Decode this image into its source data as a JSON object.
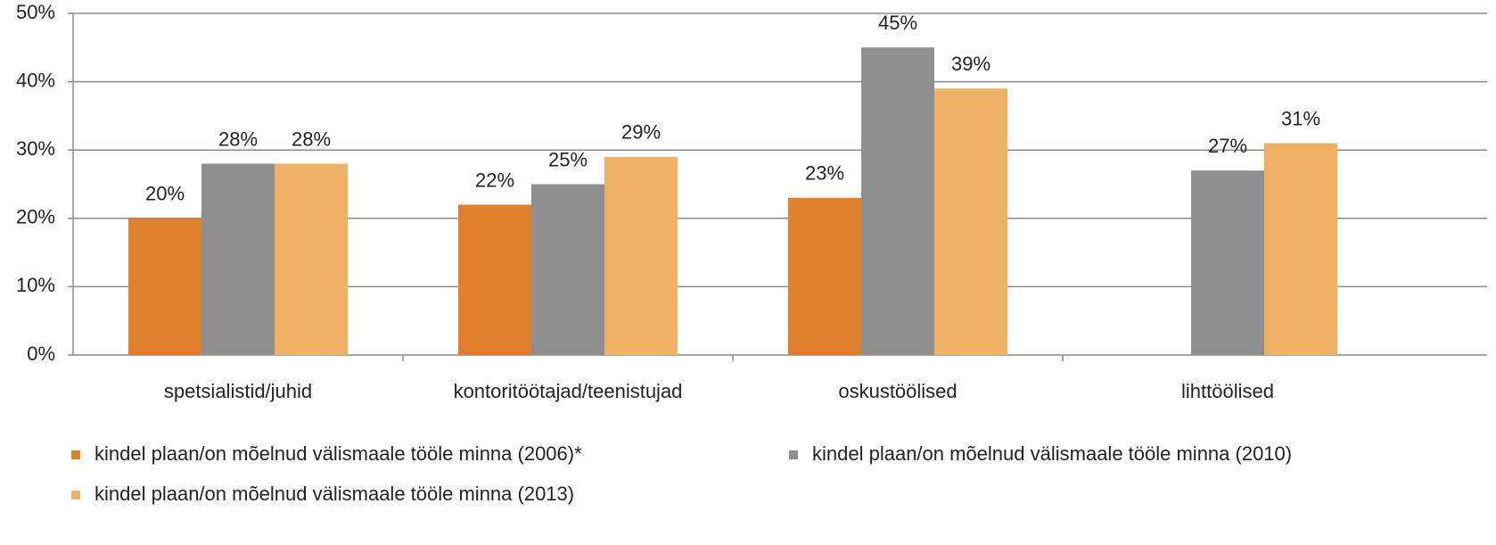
{
  "chart_data": {
    "type": "bar",
    "categories": [
      "spetsialistid/juhid",
      "kontoritöötajad/teenistujad",
      "oskustöölised",
      "lihttöölised"
    ],
    "series": [
      {
        "name": "kindel plaan/on mõelnud välismaale tööle minna (2006)*",
        "color": "#e0802c",
        "values": [
          20,
          22,
          23,
          null
        ],
        "value_labels": [
          "20%",
          "22%",
          "23%",
          null
        ]
      },
      {
        "name": "kindel plaan/on mõelnud välismaale tööle minna (2010)",
        "color": "#8e8e8e",
        "values": [
          28,
          25,
          45,
          27
        ],
        "value_labels": [
          "28%",
          "25%",
          "45%",
          "27%"
        ]
      },
      {
        "name": "kindel plaan/on mõelnud välismaale tööle minna (2013)",
        "color": "#edb064",
        "values": [
          28,
          29,
          39,
          31
        ],
        "value_labels": [
          "28%",
          "29%",
          "39%",
          "31%"
        ]
      }
    ],
    "ylim": [
      0,
      50
    ],
    "yticks": [
      {
        "value": 0,
        "label": "0%"
      },
      {
        "value": 10,
        "label": "10%"
      },
      {
        "value": 20,
        "label": "20%"
      },
      {
        "value": 30,
        "label": "30%"
      },
      {
        "value": 40,
        "label": "40%"
      },
      {
        "value": 50,
        "label": "50%"
      }
    ],
    "grid": true
  }
}
